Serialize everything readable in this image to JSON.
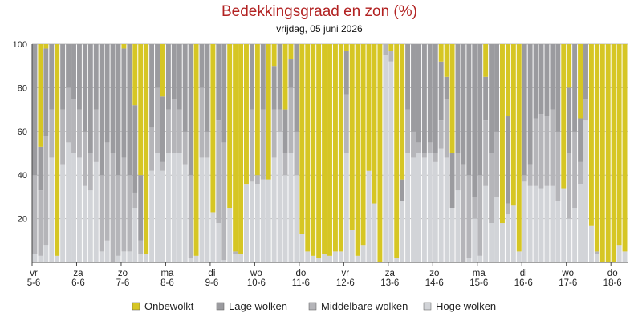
{
  "chart_data": {
    "type": "stacked_bar",
    "title": "Bedekkingsgraad en zon (%)",
    "subtitle": "vrijdag, 05 juni 2026",
    "categories": [
      [
        "vr",
        "5-6"
      ],
      null,
      null,
      null,
      null,
      null,
      null,
      null,
      [
        "za",
        "6-6"
      ],
      null,
      null,
      null,
      null,
      null,
      null,
      null,
      [
        "zo",
        "7-6"
      ],
      null,
      null,
      null,
      null,
      null,
      null,
      null,
      [
        "ma",
        "8-6"
      ],
      null,
      null,
      null,
      null,
      null,
      null,
      null,
      [
        "di",
        "9-6"
      ],
      null,
      null,
      null,
      null,
      null,
      null,
      null,
      [
        "wo",
        "10-6"
      ],
      null,
      null,
      null,
      null,
      null,
      null,
      null,
      [
        "do",
        "11-6"
      ],
      null,
      null,
      null,
      null,
      null,
      null,
      null,
      [
        "vr",
        "12-6"
      ],
      null,
      null,
      null,
      null,
      null,
      null,
      null,
      [
        "za",
        "13-6"
      ],
      null,
      null,
      null,
      null,
      null,
      null,
      null,
      [
        "zo",
        "14-6"
      ],
      null,
      null,
      null,
      null,
      null,
      null,
      null,
      [
        "ma",
        "15-6"
      ],
      null,
      null,
      null,
      null,
      null,
      null,
      null,
      [
        "di",
        "16-6"
      ],
      null,
      null,
      null,
      null,
      null,
      null,
      null,
      [
        "wo",
        "17-6"
      ],
      null,
      null,
      null,
      null,
      null,
      null,
      null,
      [
        "do",
        "18-6"
      ],
      null,
      null
    ],
    "series": [
      {
        "name": "Onbewolkt",
        "color": "#d6c624",
        "values": [
          0,
          47,
          2,
          0,
          97,
          0,
          0,
          0,
          0,
          0,
          0,
          0,
          0,
          0,
          0,
          0,
          2,
          0,
          28,
          60,
          96,
          0,
          0,
          24,
          0,
          0,
          0,
          0,
          0,
          97,
          0,
          0,
          77,
          0,
          0,
          75,
          95,
          96,
          64,
          0,
          60,
          0,
          62,
          10,
          0,
          30,
          7,
          0,
          87,
          95,
          97,
          98,
          96,
          97,
          95,
          95,
          3,
          85,
          97,
          92,
          58,
          73,
          100,
          0,
          3,
          98,
          62,
          0,
          0,
          0,
          0,
          0,
          0,
          8,
          15,
          50,
          0,
          0,
          0,
          0,
          0,
          15,
          0,
          0,
          82,
          33,
          74,
          95,
          0,
          0,
          0,
          0,
          0,
          0,
          0,
          66,
          20,
          0,
          34,
          0,
          83,
          95,
          100,
          100,
          100,
          92,
          95
        ]
      },
      {
        "name": "Lage wolken",
        "color": "#9b9b9f",
        "values": [
          60,
          20,
          40,
          30,
          0,
          30,
          20,
          25,
          30,
          40,
          50,
          30,
          60,
          45,
          50,
          60,
          50,
          60,
          40,
          30,
          0,
          38,
          20,
          30,
          30,
          25,
          30,
          40,
          60,
          0,
          20,
          40,
          0,
          35,
          45,
          0,
          0,
          0,
          0,
          30,
          0,
          30,
          0,
          20,
          30,
          20,
          13,
          40,
          0,
          0,
          0,
          0,
          0,
          0,
          0,
          0,
          20,
          0,
          0,
          0,
          0,
          0,
          0,
          0,
          0,
          0,
          10,
          30,
          40,
          45,
          50,
          45,
          50,
          27,
          10,
          25,
          50,
          55,
          60,
          70,
          60,
          20,
          50,
          40,
          0,
          40,
          0,
          0,
          60,
          55,
          34,
          32,
          33,
          30,
          40,
          0,
          30,
          40,
          20,
          25,
          0,
          0,
          0,
          0,
          0,
          0,
          0
        ]
      },
      {
        "name": "Middelbare wolken",
        "color": "#b5b5b9",
        "values": [
          36,
          30,
          50,
          22,
          0,
          25,
          25,
          25,
          22,
          25,
          17,
          24,
          35,
          45,
          50,
          37,
          43,
          35,
          7,
          6,
          0,
          20,
          30,
          4,
          20,
          25,
          20,
          15,
          38,
          0,
          32,
          12,
          0,
          47,
          54,
          0,
          1,
          0,
          0,
          33,
          4,
          32,
          0,
          22,
          10,
          10,
          30,
          20,
          0,
          0,
          0,
          0,
          0,
          0,
          0,
          0,
          27,
          0,
          0,
          0,
          0,
          0,
          0,
          5,
          5,
          0,
          0,
          20,
          12,
          5,
          2,
          5,
          4,
          13,
          27,
          0,
          17,
          45,
          38,
          10,
          37,
          30,
          32,
          30,
          0,
          5,
          0,
          0,
          3,
          10,
          31,
          34,
          32,
          35,
          32,
          0,
          30,
          35,
          10,
          10,
          0,
          1,
          0,
          0,
          0,
          0,
          0
        ]
      },
      {
        "name": "Hoge wolken",
        "color": "#d2d4d8",
        "values": [
          4,
          3,
          8,
          48,
          3,
          45,
          55,
          50,
          48,
          35,
          33,
          46,
          5,
          10,
          0,
          3,
          5,
          5,
          25,
          4,
          4,
          42,
          50,
          42,
          50,
          50,
          50,
          45,
          2,
          3,
          48,
          48,
          23,
          18,
          1,
          25,
          4,
          4,
          36,
          37,
          36,
          38,
          38,
          48,
          60,
          40,
          50,
          40,
          13,
          5,
          3,
          2,
          4,
          3,
          5,
          5,
          50,
          15,
          3,
          8,
          42,
          27,
          0,
          95,
          92,
          2,
          28,
          50,
          48,
          50,
          48,
          50,
          46,
          52,
          48,
          25,
          33,
          0,
          2,
          20,
          3,
          35,
          18,
          30,
          18,
          22,
          26,
          5,
          37,
          35,
          35,
          34,
          35,
          35,
          28,
          34,
          20,
          25,
          36,
          65,
          17,
          4,
          0,
          0,
          0,
          8,
          5
        ]
      }
    ],
    "ylim": [
      0,
      100
    ],
    "yticks": [
      20,
      40,
      60,
      80,
      100
    ],
    "grid": true
  }
}
